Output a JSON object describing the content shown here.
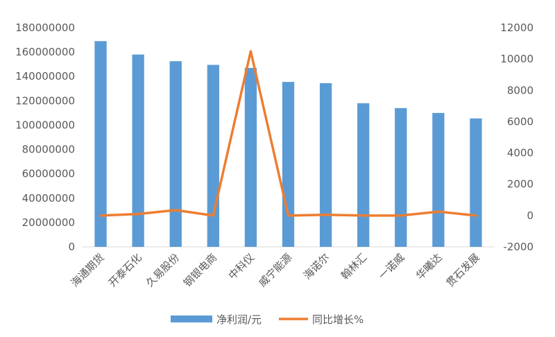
{
  "chart_data": {
    "type": "bar+line",
    "categories": [
      "海通期货",
      "开泰石化",
      "久易股份",
      "钢银电商",
      "中科仪",
      "威宁能源",
      "海诺尔",
      "翰林汇",
      "一诺威",
      "华曦达",
      "贯石发展"
    ],
    "series": [
      {
        "name": "净利润/元",
        "type": "bar",
        "axis": "left",
        "color": "#5B9BD5",
        "values": [
          169000000,
          158000000,
          152500000,
          149500000,
          147000000,
          135500000,
          134500000,
          118000000,
          114000000,
          110000000,
          105500000
        ]
      },
      {
        "name": "同比增长%",
        "type": "line",
        "axis": "right",
        "color": "#ED7D31",
        "values": [
          0,
          100,
          350,
          0,
          10500,
          0,
          50,
          0,
          0,
          250,
          0
        ]
      }
    ],
    "y_left": {
      "lim": [
        0,
        180000000
      ],
      "ticks": [
        "0",
        "20000000",
        "40000000",
        "60000000",
        "80000000",
        "100000000",
        "120000000",
        "140000000",
        "160000000",
        "180000000"
      ]
    },
    "y_right": {
      "lim": [
        -2000,
        12000
      ],
      "ticks": [
        "-2000",
        "0",
        "2000",
        "4000",
        "6000",
        "8000",
        "10000",
        "12000"
      ]
    },
    "grid": false,
    "legend": "bottom"
  }
}
